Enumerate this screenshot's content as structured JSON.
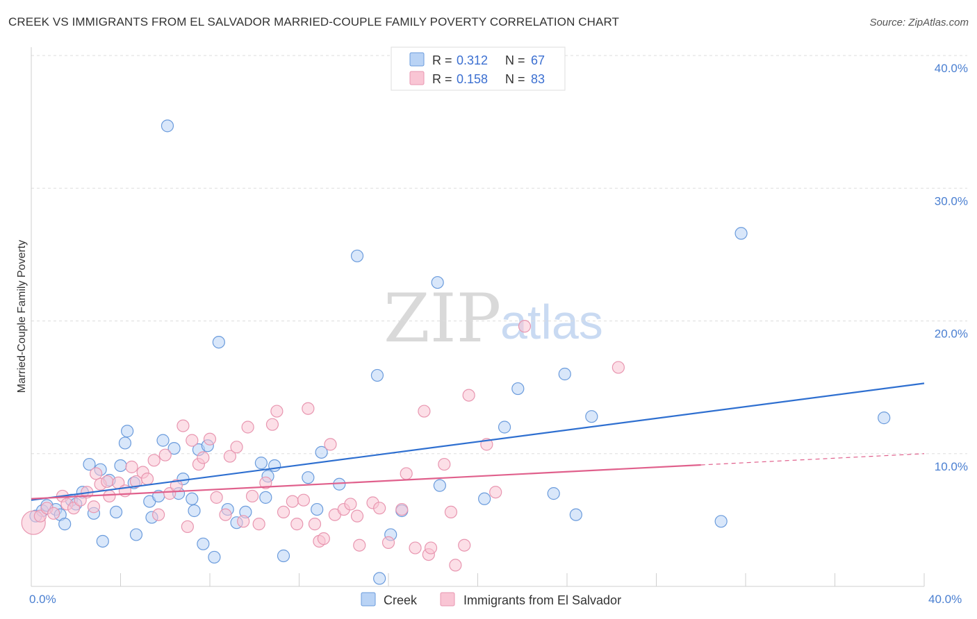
{
  "title": "CREEK VS IMMIGRANTS FROM EL SALVADOR MARRIED-COUPLE FAMILY POVERTY CORRELATION CHART",
  "source": "Source: ZipAtlas.com",
  "watermark": {
    "zip": "ZIP",
    "atlas": "atlas"
  },
  "legend": {
    "r_label": "R = ",
    "n_label": "N = ",
    "entries": [
      {
        "name": "Creek",
        "r": "0.312",
        "n": "67",
        "fill": "#b9d3f5",
        "stroke": "#6a9bdc"
      },
      {
        "name": "Immigrants from El Salvador",
        "r": "0.158",
        "n": "83",
        "fill": "#f9c5d4",
        "stroke": "#e896b0"
      }
    ]
  },
  "colors": {
    "blue_line": "#2e6fd0",
    "pink_line": "#e0608c",
    "tick_text": "#4a7fd1",
    "grid": "#dddddd"
  },
  "chart_data": {
    "type": "scatter",
    "title": "CREEK VS IMMIGRANTS FROM EL SALVADOR MARRIED-COUPLE FAMILY POVERTY CORRELATION CHART",
    "xlabel": "",
    "ylabel": "Married-Couple Family Poverty",
    "xlim": [
      0,
      40
    ],
    "ylim": [
      0,
      40
    ],
    "x_tick_labels": [
      "0.0%",
      "40.0%"
    ],
    "y_tick_labels": [
      "10.0%",
      "20.0%",
      "30.0%",
      "40.0%"
    ],
    "y_ticks": [
      10,
      20,
      30,
      40
    ],
    "series": [
      {
        "name": "Creek",
        "color": "#6a9bdc",
        "fill": "#b9d3f5",
        "trend": {
          "x": [
            0,
            40
          ],
          "y": [
            6.5,
            15.3
          ],
          "dashed_from": null
        },
        "points": [
          [
            0.2,
            5.3
          ],
          [
            0.5,
            5.7
          ],
          [
            0.7,
            6.1
          ],
          [
            1.1,
            5.8
          ],
          [
            1.3,
            5.4
          ],
          [
            1.5,
            4.7
          ],
          [
            1.8,
            6.5
          ],
          [
            2.0,
            6.2
          ],
          [
            2.3,
            7.1
          ],
          [
            2.6,
            9.2
          ],
          [
            2.8,
            5.5
          ],
          [
            3.1,
            8.8
          ],
          [
            3.2,
            3.4
          ],
          [
            3.5,
            8.0
          ],
          [
            3.8,
            5.6
          ],
          [
            4.0,
            9.1
          ],
          [
            4.2,
            10.8
          ],
          [
            4.3,
            11.7
          ],
          [
            4.6,
            7.8
          ],
          [
            4.7,
            3.9
          ],
          [
            5.3,
            6.4
          ],
          [
            5.4,
            5.2
          ],
          [
            5.7,
            6.8
          ],
          [
            5.9,
            11.0
          ],
          [
            6.1,
            34.7
          ],
          [
            6.4,
            10.4
          ],
          [
            6.6,
            7.0
          ],
          [
            6.8,
            8.1
          ],
          [
            7.2,
            6.6
          ],
          [
            7.3,
            5.7
          ],
          [
            7.5,
            10.3
          ],
          [
            7.7,
            3.2
          ],
          [
            7.9,
            10.6
          ],
          [
            8.2,
            2.2
          ],
          [
            8.4,
            18.4
          ],
          [
            8.8,
            5.8
          ],
          [
            9.2,
            4.8
          ],
          [
            9.6,
            5.6
          ],
          [
            10.3,
            9.3
          ],
          [
            10.5,
            6.7
          ],
          [
            10.6,
            8.3
          ],
          [
            10.9,
            9.1
          ],
          [
            11.3,
            2.3
          ],
          [
            12.4,
            8.2
          ],
          [
            12.8,
            5.8
          ],
          [
            13.0,
            10.1
          ],
          [
            13.8,
            7.7
          ],
          [
            14.6,
            24.9
          ],
          [
            15.5,
            15.9
          ],
          [
            15.6,
            0.6
          ],
          [
            16.1,
            3.9
          ],
          [
            16.6,
            5.7
          ],
          [
            18.2,
            22.9
          ],
          [
            18.3,
            7.6
          ],
          [
            20.3,
            6.6
          ],
          [
            21.2,
            12.0
          ],
          [
            21.8,
            14.9
          ],
          [
            23.4,
            7.0
          ],
          [
            23.9,
            16.0
          ],
          [
            24.4,
            5.4
          ],
          [
            25.1,
            12.8
          ],
          [
            30.9,
            4.9
          ],
          [
            31.8,
            26.6
          ],
          [
            38.2,
            12.7
          ]
        ]
      },
      {
        "name": "Immigrants from El Salvador",
        "color": "#e896b0",
        "fill": "#f9c5d4",
        "trend": {
          "x": [
            0,
            40
          ],
          "y": [
            6.6,
            10.0
          ],
          "dashed_from": 30
        },
        "points": [
          [
            0.1,
            4.8
          ],
          [
            0.4,
            5.3
          ],
          [
            0.7,
            5.9
          ],
          [
            1.0,
            5.5
          ],
          [
            1.4,
            6.8
          ],
          [
            1.6,
            6.2
          ],
          [
            1.9,
            5.9
          ],
          [
            2.2,
            6.5
          ],
          [
            2.5,
            7.1
          ],
          [
            2.8,
            6.0
          ],
          [
            2.9,
            8.5
          ],
          [
            3.1,
            7.7
          ],
          [
            3.4,
            7.9
          ],
          [
            3.5,
            6.8
          ],
          [
            3.9,
            7.8
          ],
          [
            4.2,
            7.2
          ],
          [
            4.5,
            9.0
          ],
          [
            4.7,
            7.9
          ],
          [
            5.0,
            8.6
          ],
          [
            5.2,
            8.1
          ],
          [
            5.5,
            9.5
          ],
          [
            5.7,
            5.4
          ],
          [
            6.0,
            9.9
          ],
          [
            6.2,
            7.0
          ],
          [
            6.5,
            7.6
          ],
          [
            6.8,
            12.1
          ],
          [
            7.0,
            4.5
          ],
          [
            7.2,
            11.0
          ],
          [
            7.5,
            9.2
          ],
          [
            7.7,
            9.7
          ],
          [
            8.0,
            11.1
          ],
          [
            8.3,
            6.7
          ],
          [
            8.7,
            5.4
          ],
          [
            8.9,
            9.8
          ],
          [
            9.2,
            10.5
          ],
          [
            9.5,
            4.9
          ],
          [
            9.7,
            12.0
          ],
          [
            9.9,
            6.8
          ],
          [
            10.2,
            4.7
          ],
          [
            10.5,
            7.8
          ],
          [
            10.8,
            12.2
          ],
          [
            11.0,
            13.2
          ],
          [
            11.3,
            5.6
          ],
          [
            11.7,
            6.4
          ],
          [
            11.9,
            4.7
          ],
          [
            12.2,
            6.5
          ],
          [
            12.4,
            13.4
          ],
          [
            12.7,
            4.7
          ],
          [
            12.9,
            3.4
          ],
          [
            13.1,
            3.6
          ],
          [
            13.4,
            10.7
          ],
          [
            13.6,
            5.4
          ],
          [
            14.0,
            5.8
          ],
          [
            14.3,
            6.2
          ],
          [
            14.6,
            5.3
          ],
          [
            14.7,
            3.1
          ],
          [
            15.3,
            6.3
          ],
          [
            15.6,
            5.9
          ],
          [
            16.0,
            3.3
          ],
          [
            16.6,
            5.8
          ],
          [
            16.8,
            8.5
          ],
          [
            17.2,
            2.9
          ],
          [
            17.6,
            13.2
          ],
          [
            17.8,
            2.4
          ],
          [
            17.9,
            2.9
          ],
          [
            18.5,
            9.2
          ],
          [
            18.8,
            5.6
          ],
          [
            19.0,
            1.6
          ],
          [
            19.4,
            3.1
          ],
          [
            19.6,
            14.4
          ],
          [
            20.4,
            10.7
          ],
          [
            20.8,
            7.1
          ],
          [
            22.1,
            19.6
          ],
          [
            26.3,
            16.5
          ]
        ]
      }
    ]
  }
}
